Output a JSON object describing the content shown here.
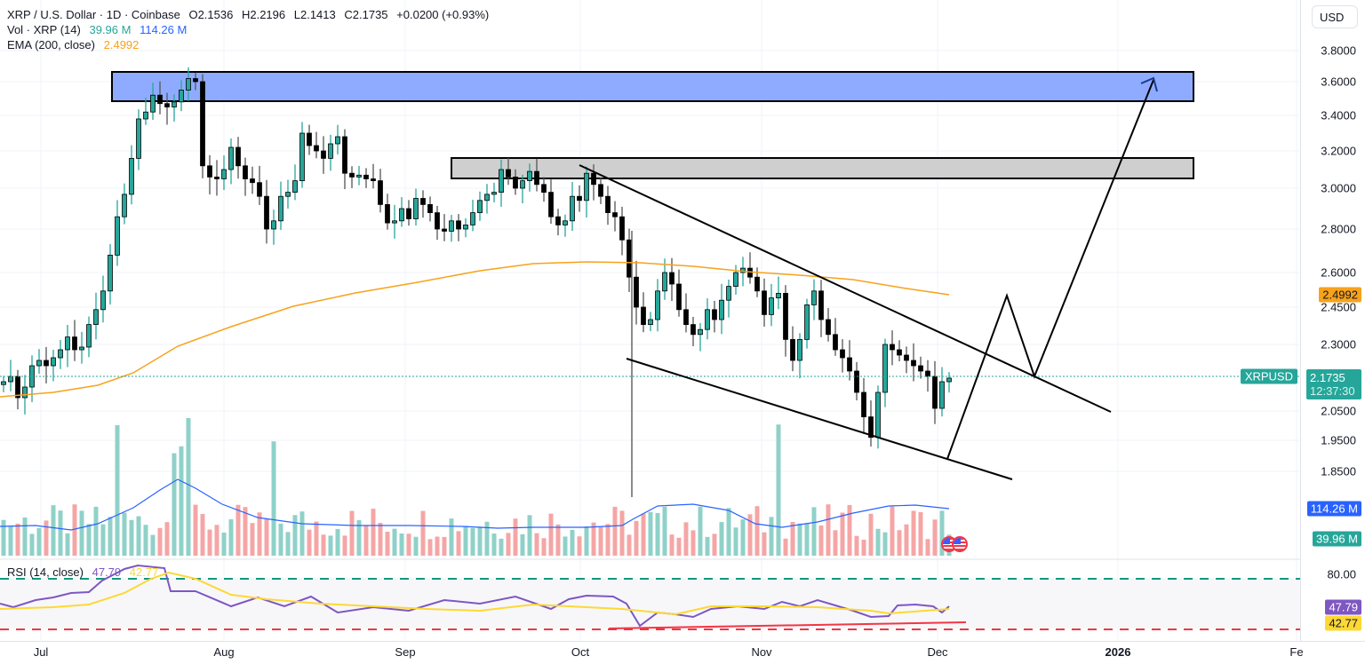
{
  "header": {
    "symbol_line": "XRP / U.S. Dollar · 1D · Coinbase",
    "open": "O2.1536",
    "high": "H2.2196",
    "low": "L2.1413",
    "close": "C2.1735",
    "change": "+0.0200 (+0.93%)",
    "vol_label": "Vol · XRP (14)",
    "vol_value": "39.96 M",
    "vol_ma_value": "114.26 M",
    "ema_label": "EMA (200, close)",
    "ema_value": "2.4992"
  },
  "rsi_legend": {
    "label": "RSI (14, close)",
    "rsi": "47.79",
    "ma": "42.77"
  },
  "price_axis": {
    "currency_button": "USD",
    "ticks": [
      "3.8000",
      "3.6000",
      "3.4000",
      "3.2000",
      "3.0000",
      "2.8000",
      "2.6000",
      "2.4500",
      "2.3000",
      "2.0500",
      "1.9500",
      "1.8500"
    ],
    "ema_badge": "2.4992",
    "last_price": "2.1735",
    "countdown": "12:37:30",
    "symbol_badge": "XRPUSD",
    "vol_ma_badge": "114.26 M",
    "vol_badge": "39.96 M",
    "rsi_upper": "80.00",
    "rsi_value_badge": "47.79",
    "rsi_ma_badge": "42.77"
  },
  "time_axis": [
    "Jul",
    "Aug",
    "Sep",
    "Oct",
    "Nov",
    "Dec",
    "2026",
    "Fe"
  ],
  "colors": {
    "up": "#26a69a",
    "down": "#000000",
    "vol_up": "#8fd1c8",
    "vol_down": "#f5a5a5",
    "ema": "#f7a21b",
    "vol_ma": "#2962ff",
    "rsi": "#7e57c2",
    "rsi_ma": "#fdd835",
    "resistance_zone": "#8fabff",
    "supply_zone": "#cfcfcf"
  },
  "chart_data": {
    "type": "candlestick",
    "title": "XRP / U.S. Dollar · 1D · Coinbase",
    "xlabel": "",
    "ylabel": "USD",
    "x_ticks": [
      "Jul",
      "Aug",
      "Sep",
      "Oct",
      "Nov",
      "Dec",
      "2026",
      "Fe"
    ],
    "y_ticks": [
      1.85,
      1.95,
      2.05,
      2.3,
      2.45,
      2.6,
      2.8,
      3.0,
      3.2,
      3.4,
      3.6,
      3.8
    ],
    "ylim": [
      1.78,
      3.9
    ],
    "scale": "log-like (TradingView auto)",
    "candles_approx_close": [
      2.16,
      2.18,
      2.1,
      2.14,
      2.22,
      2.24,
      2.22,
      2.25,
      2.28,
      2.33,
      2.28,
      2.29,
      2.38,
      2.44,
      2.52,
      2.68,
      2.86,
      2.97,
      3.16,
      3.38,
      3.42,
      3.52,
      3.47,
      3.45,
      3.48,
      3.55,
      3.62,
      3.6,
      3.12,
      3.06,
      3.05,
      3.1,
      3.22,
      3.12,
      3.05,
      3.03,
      2.96,
      2.8,
      2.84,
      2.96,
      2.98,
      3.04,
      3.3,
      3.23,
      3.2,
      3.16,
      3.24,
      3.28,
      3.08,
      3.06,
      3.07,
      3.05,
      3.04,
      2.92,
      2.83,
      2.84,
      2.9,
      2.85,
      2.95,
      2.92,
      2.88,
      2.8,
      2.79,
      2.84,
      2.8,
      2.82,
      2.88,
      2.94,
      2.97,
      2.98,
      3.1,
      3.06,
      3.0,
      3.04,
      3.09,
      3.02,
      2.98,
      2.86,
      2.82,
      2.84,
      2.96,
      2.94,
      3.08,
      3.02,
      2.96,
      2.88,
      2.86,
      2.75,
      2.58,
      2.45,
      2.38,
      2.4,
      2.52,
      2.6,
      2.55,
      2.44,
      2.38,
      2.34,
      2.36,
      2.44,
      2.4,
      2.48,
      2.54,
      2.6,
      2.62,
      2.58,
      2.52,
      2.42,
      2.49,
      2.51,
      2.32,
      2.24,
      2.32,
      2.46,
      2.52,
      2.4,
      2.34,
      2.28,
      2.25,
      2.2,
      2.12,
      2.03,
      1.96,
      2.12,
      2.3,
      2.28,
      2.26,
      2.24,
      2.22,
      2.2,
      2.18,
      2.06,
      2.16,
      2.1735
    ],
    "ema200_last": 2.4992,
    "volume": {
      "last": "39.96M",
      "ma14_last": "114.26M"
    },
    "rsi": {
      "period": 14,
      "value": 47.79,
      "ma": 42.77,
      "upper_band": 80,
      "lower_band": 20
    },
    "annotations": [
      {
        "type": "zone",
        "label": "resistance zone",
        "from": 3.5,
        "to": 3.66,
        "color": "#8fabff"
      },
      {
        "type": "zone",
        "label": "supply zone",
        "from": 3.05,
        "to": 3.16,
        "color": "#cfcfcf"
      },
      {
        "type": "trendline",
        "label": "falling wedge upper",
        "from": [
          3.12,
          "Oct 1"
        ],
        "to": [
          2.05,
          "Dec 30"
        ]
      },
      {
        "type": "trendline",
        "label": "falling wedge lower",
        "from": [
          2.24,
          "Oct 8"
        ],
        "to": [
          1.83,
          "Dec 14"
        ]
      },
      {
        "type": "projection",
        "label": "breakout path",
        "points": [
          1.88,
          2.47,
          2.17,
          3.62
        ]
      },
      {
        "type": "trendline",
        "label": "RSI bullish divergence",
        "color": "#f23645"
      }
    ]
  }
}
